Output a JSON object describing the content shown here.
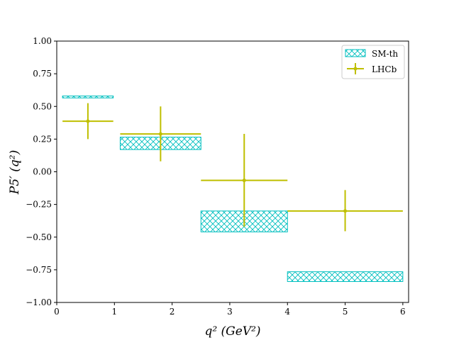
{
  "chart_data": {
    "type": "errorbar-band",
    "xlabel": "q² (GeV²)",
    "ylabel": "P5′ (q²)",
    "xlim": [
      0,
      6.1
    ],
    "ylim": [
      -1.0,
      1.0
    ],
    "xticks": [
      "0",
      "1",
      "2",
      "3",
      "4",
      "5",
      "6"
    ],
    "yticks": [
      "−1.00",
      "−0.75",
      "−0.50",
      "−0.25",
      "0.00",
      "0.25",
      "0.50",
      "0.75",
      "1.00"
    ],
    "grid": false,
    "legend_position": "top-right",
    "colors": {
      "sm": "#00bfbf",
      "lhcb": "#bfbf00",
      "axis": "#000000"
    },
    "series": [
      {
        "name": "SM-th",
        "style": "hatched-box",
        "bins": [
          {
            "x_low": 0.1,
            "x_high": 0.98,
            "y_low": 0.565,
            "y_high": 0.58
          },
          {
            "x_low": 1.1,
            "x_high": 2.5,
            "y_low": 0.17,
            "y_high": 0.265
          },
          {
            "x_low": 2.5,
            "x_high": 4.0,
            "y_low": -0.46,
            "y_high": -0.3
          },
          {
            "x_low": 4.0,
            "x_high": 6.0,
            "y_low": -0.84,
            "y_high": -0.765
          }
        ]
      },
      {
        "name": "LHCb",
        "style": "errorbar",
        "points": [
          {
            "x": 0.54,
            "y": 0.387,
            "x_low": 0.1,
            "x_high": 0.98,
            "y_low": 0.25,
            "y_high": 0.525
          },
          {
            "x": 1.8,
            "y": 0.289,
            "x_low": 1.1,
            "x_high": 2.5,
            "y_low": 0.08,
            "y_high": 0.5
          },
          {
            "x": 3.25,
            "y": -0.066,
            "x_low": 2.5,
            "x_high": 4.0,
            "y_low": -0.42,
            "y_high": 0.29
          },
          {
            "x": 5.0,
            "y": -0.3,
            "x_low": 4.0,
            "x_high": 6.0,
            "y_low": -0.455,
            "y_high": -0.14
          }
        ]
      }
    ]
  }
}
